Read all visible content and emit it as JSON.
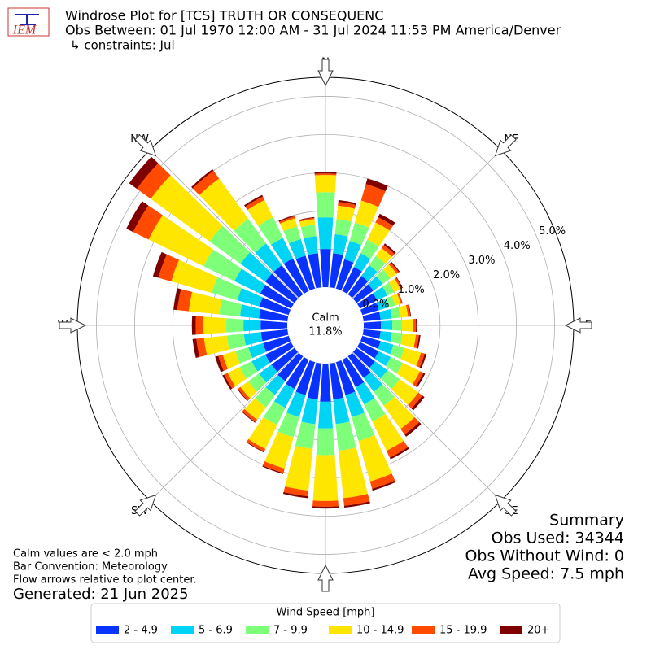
{
  "chart_data": {
    "type": "windrose",
    "title": "Windrose Plot for [TCS] TRUTH OR CONSEQUENC",
    "subtitle": "Obs Between: 01 Jul 1970 12:00 AM - 31 Jul 2024 11:53 PM America/Denver",
    "constraints": "↳ constraints: Jul",
    "logo": "IEM",
    "x": [
      0,
      10,
      20,
      30,
      40,
      50,
      60,
      70,
      80,
      90,
      100,
      110,
      120,
      130,
      140,
      150,
      160,
      170,
      180,
      190,
      200,
      210,
      220,
      230,
      240,
      250,
      260,
      270,
      280,
      290,
      300,
      310,
      320,
      330,
      340,
      350
    ],
    "xlim": [
      0,
      360
    ],
    "xticks": [
      {
        "value": 0,
        "label": "N"
      },
      {
        "value": 45,
        "label": "NE"
      },
      {
        "value": 90,
        "label": "E"
      },
      {
        "value": 135,
        "label": "SE"
      },
      {
        "value": 180,
        "label": "S"
      },
      {
        "value": 225,
        "label": "SW"
      },
      {
        "value": 270,
        "label": "W"
      },
      {
        "value": 315,
        "label": "NW"
      }
    ],
    "ylim": [
      0,
      5.5
    ],
    "yticks": [
      {
        "value": 0,
        "label": "0.0%"
      },
      {
        "value": 1,
        "label": "1.0%"
      },
      {
        "value": 2,
        "label": "2.0%"
      },
      {
        "value": 3,
        "label": "3.0%"
      },
      {
        "value": 4,
        "label": "4.0%"
      },
      {
        "value": 5,
        "label": "5.0%"
      }
    ],
    "grid": true,
    "calm_title": "Calm",
    "calm": {
      "value": 11.8,
      "label": "11.8%"
    },
    "legend_title": "Wind Speed [mph]",
    "series": [
      {
        "name": "2 - 4.9",
        "color": "#0a32ff",
        "values": [
          1.0,
          0.9,
          0.8,
          0.7,
          0.6,
          0.55,
          0.5,
          0.45,
          0.45,
          0.45,
          0.45,
          0.5,
          0.55,
          0.6,
          0.7,
          0.8,
          0.9,
          0.95,
          1.0,
          0.95,
          0.9,
          0.85,
          0.8,
          0.75,
          0.75,
          0.7,
          0.7,
          0.7,
          0.75,
          0.8,
          0.9,
          0.95,
          0.95,
          0.95,
          0.9,
          0.9
        ]
      },
      {
        "name": "5 - 6.9",
        "color": "#00d4f5",
        "values": [
          0.83,
          0.5,
          0.5,
          0.4,
          0.35,
          0.3,
          0.3,
          0.25,
          0.3,
          0.3,
          0.3,
          0.35,
          0.35,
          0.4,
          0.45,
          0.5,
          0.6,
          0.65,
          0.7,
          0.65,
          0.6,
          0.55,
          0.45,
          0.4,
          0.4,
          0.4,
          0.45,
          0.45,
          0.5,
          0.6,
          0.75,
          0.8,
          0.7,
          0.6,
          0.45,
          0.45
        ]
      },
      {
        "name": "7 - 9.9",
        "color": "#7dff7a",
        "values": [
          0.66,
          0.4,
          0.5,
          0.4,
          0.3,
          0.25,
          0.2,
          0.2,
          0.22,
          0.25,
          0.28,
          0.3,
          0.35,
          0.4,
          0.45,
          0.5,
          0.65,
          0.7,
          0.7,
          0.65,
          0.55,
          0.5,
          0.4,
          0.35,
          0.35,
          0.35,
          0.45,
          0.45,
          0.55,
          0.7,
          0.9,
          1.0,
          0.8,
          0.6,
          0.35,
          0.3
        ]
      },
      {
        "name": "10 - 14.9",
        "color": "#ffe600",
        "values": [
          0.45,
          0.35,
          0.6,
          0.5,
          0.25,
          0.2,
          0.18,
          0.15,
          0.2,
          0.3,
          0.35,
          0.45,
          0.5,
          0.6,
          0.75,
          0.85,
          1.1,
          1.25,
          1.2,
          1.1,
          0.85,
          0.7,
          0.4,
          0.25,
          0.35,
          0.35,
          0.6,
          0.6,
          0.8,
          1.1,
          1.6,
          1.9,
          1.3,
          0.5,
          0.22,
          0.15
        ]
      },
      {
        "name": "15 - 19.9",
        "color": "#ff4a00",
        "values": [
          0.04,
          0.1,
          0.45,
          0.15,
          0.1,
          0.07,
          0.05,
          0.04,
          0.06,
          0.07,
          0.08,
          0.1,
          0.1,
          0.13,
          0.18,
          0.2,
          0.2,
          0.2,
          0.15,
          0.15,
          0.12,
          0.08,
          0.08,
          0.08,
          0.1,
          0.12,
          0.2,
          0.2,
          0.3,
          0.35,
          0.45,
          0.45,
          0.25,
          0.1,
          0.05,
          0.03
        ]
      },
      {
        "name": "20+",
        "color": "#800000",
        "values": [
          0.04,
          0.05,
          0.15,
          0.1,
          0.05,
          0.03,
          0.02,
          0.01,
          0.02,
          0.03,
          0.04,
          0.05,
          0.05,
          0.07,
          0.07,
          0.05,
          0.05,
          0.05,
          0.05,
          0.05,
          0.03,
          0.02,
          0.02,
          0.02,
          0.05,
          0.08,
          0.1,
          0.1,
          0.1,
          0.15,
          0.2,
          0.25,
          0.05,
          0.05,
          0.03,
          0.02
        ]
      }
    ],
    "notes": [
      "Calm values are < 2.0 mph",
      "Bar Convention: Meteorology",
      "Flow arrows relative to plot center."
    ],
    "generated": "Generated: 21 Jun 2025",
    "summary": {
      "title": "Summary",
      "lines": [
        "Obs Used: 34344",
        "Obs Without Wind: 0",
        "Avg Speed: 7.5 mph"
      ]
    }
  }
}
